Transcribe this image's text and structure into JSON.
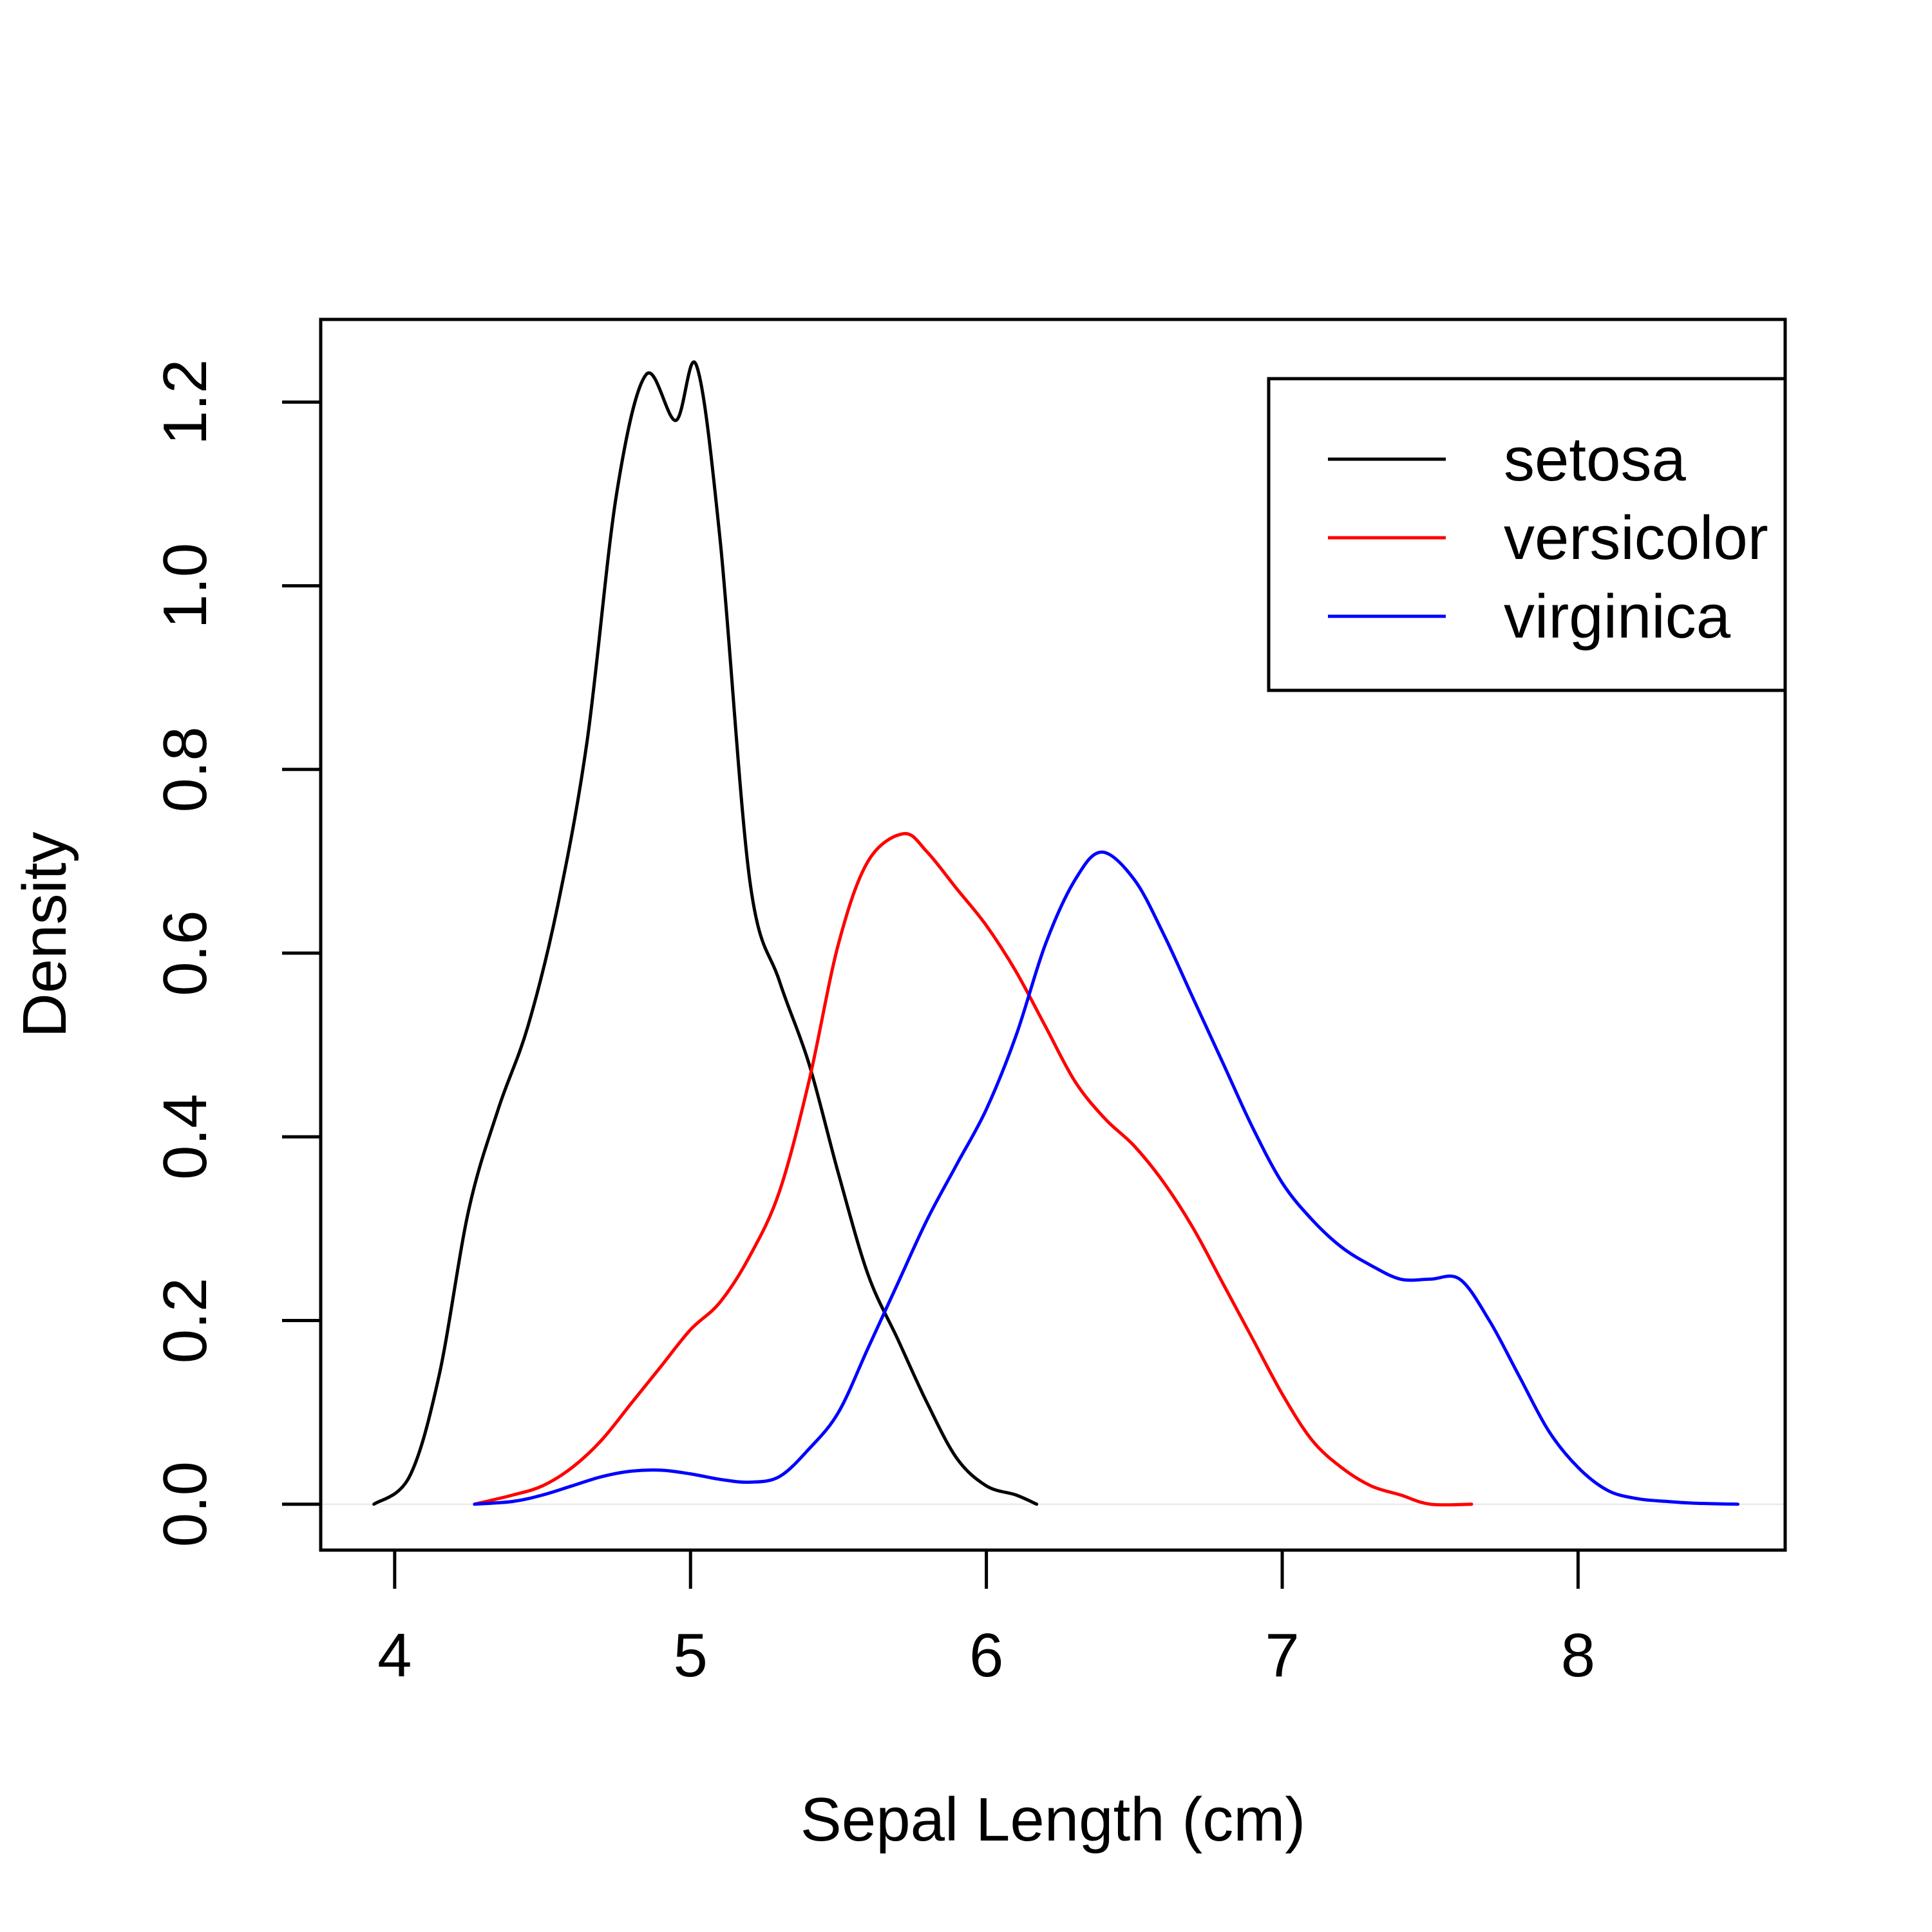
{
  "chart_data": {
    "type": "line",
    "title": "",
    "xlabel": "Sepal Length (cm)",
    "ylabel": "Density",
    "xlim": [
      3.75,
      8.7
    ],
    "ylim": [
      -0.05,
      1.29
    ],
    "x_ticks": [
      4,
      5,
      6,
      7,
      8
    ],
    "x_tick_labels": [
      "4",
      "5",
      "6",
      "7",
      "8"
    ],
    "y_ticks": [
      0.0,
      0.2,
      0.4,
      0.6,
      0.8,
      1.0,
      1.2
    ],
    "y_tick_labels": [
      "0.0",
      "0.2",
      "0.4",
      "0.6",
      "0.8",
      "1.0",
      "1.2"
    ],
    "grid": false,
    "legend_position": "top-right",
    "series": [
      {
        "name": "setosa",
        "color": "#000000",
        "x": [
          3.93,
          4.05,
          4.15,
          4.25,
          4.35,
          4.45,
          4.55,
          4.65,
          4.75,
          4.85,
          4.95,
          5.02,
          5.1,
          5.2,
          5.3,
          5.4,
          5.5,
          5.6,
          5.7,
          5.8,
          5.9,
          6.0,
          6.1,
          6.17
        ],
        "y": [
          0.0,
          0.03,
          0.14,
          0.32,
          0.43,
          0.52,
          0.65,
          0.83,
          1.1,
          1.23,
          1.18,
          1.24,
          1.05,
          0.68,
          0.57,
          0.48,
          0.36,
          0.25,
          0.18,
          0.11,
          0.05,
          0.02,
          0.01,
          0.0
        ],
        "stroke_width": 5
      },
      {
        "name": "versicolor",
        "color": "#ff0000",
        "x": [
          4.27,
          4.4,
          4.5,
          4.6,
          4.7,
          4.8,
          4.9,
          5.0,
          5.1,
          5.2,
          5.3,
          5.4,
          5.5,
          5.6,
          5.72,
          5.8,
          5.9,
          6.0,
          6.1,
          6.2,
          6.3,
          6.4,
          6.5,
          6.6,
          6.7,
          6.8,
          6.9,
          7.0,
          7.1,
          7.2,
          7.3,
          7.4,
          7.5,
          7.64
        ],
        "y": [
          0.0,
          0.01,
          0.02,
          0.04,
          0.07,
          0.11,
          0.15,
          0.19,
          0.22,
          0.27,
          0.34,
          0.46,
          0.61,
          0.7,
          0.73,
          0.71,
          0.67,
          0.63,
          0.58,
          0.52,
          0.46,
          0.42,
          0.39,
          0.35,
          0.3,
          0.24,
          0.18,
          0.12,
          0.07,
          0.04,
          0.02,
          0.01,
          0.0,
          0.0
        ],
        "stroke_width": 5
      },
      {
        "name": "virginica",
        "color": "#0000ff",
        "x": [
          4.27,
          4.4,
          4.5,
          4.6,
          4.7,
          4.8,
          4.9,
          5.0,
          5.1,
          5.2,
          5.3,
          5.4,
          5.5,
          5.6,
          5.7,
          5.8,
          5.9,
          6.0,
          6.1,
          6.2,
          6.3,
          6.39,
          6.5,
          6.6,
          6.7,
          6.8,
          6.9,
          7.0,
          7.1,
          7.2,
          7.3,
          7.4,
          7.5,
          7.6,
          7.7,
          7.8,
          7.9,
          8.0,
          8.1,
          8.2,
          8.3,
          8.4,
          8.54
        ],
        "y": [
          0.0,
          0.003,
          0.01,
          0.02,
          0.03,
          0.036,
          0.037,
          0.033,
          0.027,
          0.024,
          0.03,
          0.06,
          0.1,
          0.17,
          0.24,
          0.31,
          0.37,
          0.43,
          0.51,
          0.61,
          0.68,
          0.71,
          0.68,
          0.62,
          0.55,
          0.48,
          0.41,
          0.35,
          0.31,
          0.28,
          0.26,
          0.245,
          0.245,
          0.245,
          0.2,
          0.14,
          0.08,
          0.04,
          0.015,
          0.006,
          0.003,
          0.001,
          0.0
        ],
        "stroke_width": 5
      }
    ]
  }
}
